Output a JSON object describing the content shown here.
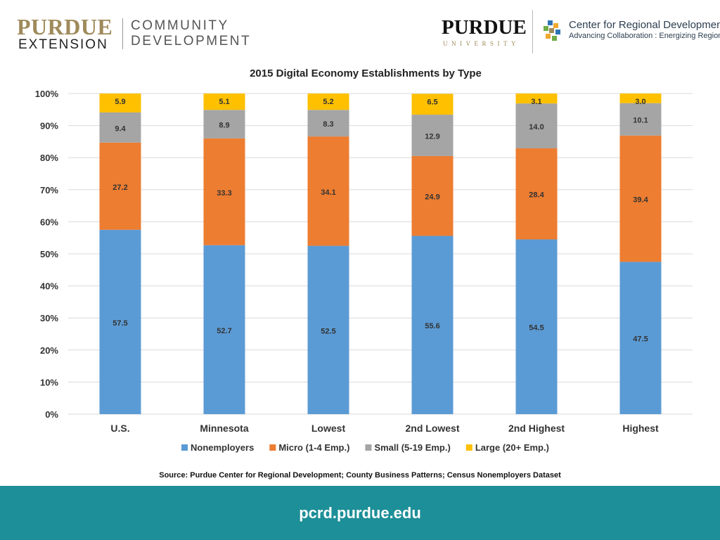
{
  "header": {
    "extension_logo": {
      "line1": "PURDUE",
      "line2": "EXTENSION",
      "line3": "COMMUNITY",
      "line4": "DEVELOPMENT"
    },
    "purdue_logo": {
      "line1": "PURDUE",
      "line2": "UNIVERSITY"
    },
    "pcrd_logo": {
      "title": "Center for Regional Development",
      "tagline": "Advancing Collaboration : Energizing Regions"
    }
  },
  "colors": {
    "nonemployers": "#5b9bd5",
    "micro": "#ed7d31",
    "small": "#a5a5a5",
    "large": "#ffc000",
    "footer": "#1d8f98"
  },
  "chart_data": {
    "type": "bar",
    "stacked": true,
    "title": "2015 Digital Economy Establishments by Type",
    "categories": [
      "U.S.",
      "Minnesota",
      "Lowest",
      "2nd Lowest",
      "2nd Highest",
      "Highest"
    ],
    "series": [
      {
        "name": "Nonemployers",
        "values": [
          57.5,
          52.7,
          52.5,
          55.6,
          54.5,
          47.5
        ]
      },
      {
        "name": "Micro (1-4 Emp.)",
        "values": [
          27.2,
          33.3,
          34.1,
          24.9,
          28.4,
          39.4
        ]
      },
      {
        "name": "Small (5-19 Emp.)",
        "values": [
          9.4,
          8.9,
          8.3,
          12.9,
          14.0,
          10.1
        ]
      },
      {
        "name": "Large (20+ Emp.)",
        "values": [
          5.9,
          5.1,
          5.2,
          6.5,
          3.1,
          3.0
        ]
      }
    ],
    "data_labels": [
      [
        "57.5",
        "52.7",
        "52.5",
        "55.6",
        "54.5",
        "47.5"
      ],
      [
        "27.2",
        "33.3",
        "34.1",
        "24.9",
        "28.4",
        "39.4"
      ],
      [
        "9.4",
        "8.9",
        "8.3",
        "12.9",
        "14.0",
        "10.1"
      ],
      [
        "5.9",
        "5.1",
        "5.2",
        "6.5",
        "3.1",
        "3.0"
      ]
    ],
    "y_ticks": [
      "0%",
      "10%",
      "20%",
      "30%",
      "40%",
      "50%",
      "60%",
      "70%",
      "80%",
      "90%",
      "100%"
    ],
    "ylim": [
      0,
      100
    ],
    "grid": true,
    "legend": "bottom"
  },
  "source": "Source: Purdue Center for Regional Development; County Business Patterns; Census Nonemployers Dataset",
  "footer": {
    "url": "pcrd.purdue.edu"
  }
}
